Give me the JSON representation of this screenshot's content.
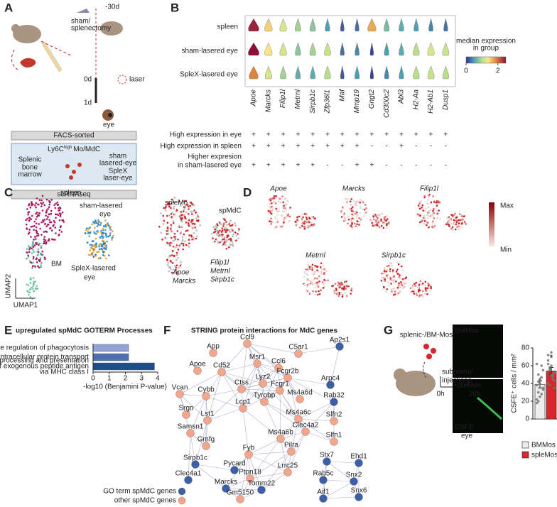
{
  "panel_a": {
    "label": "A",
    "t_start": "-30d",
    "surgery": [
      "sham/",
      "splenectomy"
    ],
    "laser": "laser",
    "day0": "0d",
    "day1": "1d",
    "eye": "eye",
    "sort": "FACS-sorted",
    "population": {
      "base": "Ly6C",
      "sup": "high",
      "rest": "Mo/MdC"
    },
    "source_splenic": "Splenic",
    "source_bm": [
      "bone",
      "marrow"
    ],
    "source_sham": [
      "sham",
      "lasered-eye"
    ],
    "source_splex": [
      "SpleX",
      "laser-eye"
    ],
    "seq": "scRNAseq"
  },
  "panel_b": {
    "label": "B",
    "groups": [
      "spleen",
      "sham-lasered eye",
      "SpleX-lasered eye"
    ],
    "genes": [
      "Apoe",
      "Marcks",
      "Filip1l",
      "Metrnl",
      "Sirpb1c",
      "Zfp36l1",
      "Maf",
      "Mmp19",
      "Gngt2",
      "Cd300c2",
      "Abl3",
      "H2-Aa",
      "H2-Ab1",
      "Dusp1"
    ],
    "gene_colors": [
      "#c0272d",
      "#c0272d",
      "#c0272d",
      "#c0272d",
      "#c0272d",
      "#222222",
      "#222222",
      "#222222",
      "#222222",
      "#222222",
      "#222222",
      "#222222",
      "#222222",
      "#222222"
    ],
    "medians": [
      [
        2.4,
        1.5,
        1.2,
        0.9,
        0.8,
        0.5,
        0.2,
        0.3,
        1.7,
        0.7,
        0.6,
        0.5,
        0.4,
        0.3
      ],
      [
        2.5,
        1.4,
        1.2,
        0.8,
        0.9,
        1.1,
        0.3,
        0.4,
        0.1,
        0.5,
        0.6,
        1.0,
        1.2,
        1.1
      ],
      [
        1.9,
        1.2,
        0.9,
        0.6,
        0.6,
        1.0,
        0.2,
        0.5,
        0.1,
        0.4,
        0.5,
        1.0,
        1.1,
        1.0
      ]
    ],
    "colorbar": {
      "title": [
        "median expression",
        "in group"
      ],
      "lim": [
        0,
        2.5
      ],
      "ticks": [
        0,
        2
      ]
    },
    "criteria": [
      {
        "label": [
          "High expression in eye"
        ],
        "marks": [
          "+",
          "+",
          "+",
          "+",
          "+",
          "+",
          "+",
          "+",
          "+",
          "+",
          "+",
          "+",
          "+",
          "+"
        ]
      },
      {
        "label": [
          "High expression in spleen"
        ],
        "marks": [
          "+",
          "+",
          "+",
          "+",
          "+",
          "+",
          "+",
          "+",
          "-",
          "-",
          "+",
          "-",
          "-",
          "-"
        ]
      },
      {
        "label": [
          "Higher expresion",
          "in sham-lasered eye"
        ],
        "marks": [
          "+",
          "+",
          "+",
          "+",
          "+",
          "-",
          "-",
          "+",
          "+",
          "-",
          "-",
          "-",
          "-",
          "-"
        ]
      }
    ]
  },
  "panel_c": {
    "label": "C",
    "spleen": "spleen",
    "bm": "BM",
    "sham": [
      "sham-lasered",
      "eye"
    ],
    "splex": [
      "SpleX-lasered",
      "eye"
    ],
    "splemo": "spleMo",
    "spmdc": "spMdC",
    "splemo_genes": [
      "Apoe",
      "Marcks"
    ],
    "spmdc_genes": [
      "Filip1l",
      "Metrnl",
      "Sirpb1c"
    ],
    "y_axis": "UMAP2",
    "x_axis": "UMAP1"
  },
  "panel_d": {
    "label": "D",
    "genes": [
      "Apoe",
      "Marcks",
      "Filip1l",
      "Metrnl",
      "Sirpb1c"
    ],
    "scale": [
      "Max",
      "Min"
    ]
  },
  "panel_f": {
    "label": "F",
    "title": "STRING protein interactions for MdC genes",
    "nodes": [
      {
        "label": "App",
        "go": false
      },
      {
        "label": "Ccl9",
        "go": false
      },
      {
        "label": "Ap2s1",
        "go": true
      },
      {
        "label": "C5ar1",
        "go": false
      },
      {
        "label": "Msr1",
        "go": false
      },
      {
        "label": "Ccl6",
        "go": false
      },
      {
        "label": "Apoe",
        "go": false
      },
      {
        "label": "Cd52",
        "go": false
      },
      {
        "label": "Fcgr2b",
        "go": false
      },
      {
        "label": "Arpc4",
        "go": true
      },
      {
        "label": "Vcan",
        "go": false
      },
      {
        "label": "Cybb",
        "go": false
      },
      {
        "label": "Ms4a6d",
        "go": false
      },
      {
        "label": "Rab32",
        "go": true
      },
      {
        "label": "Fcgr1",
        "go": false
      },
      {
        "label": "Srgn",
        "go": false
      },
      {
        "label": "Lst1",
        "go": false
      },
      {
        "label": "Ms4a6c",
        "go": false
      },
      {
        "label": "Slfn2",
        "go": false
      },
      {
        "label": "Samsn1",
        "go": false
      },
      {
        "label": "Clec4a2",
        "go": false
      },
      {
        "label": "Slfn1",
        "go": false
      },
      {
        "label": "Ms4a6b",
        "go": false
      },
      {
        "label": "Pilra",
        "go": false
      },
      {
        "label": "Gmfg",
        "go": false
      },
      {
        "label": "Fyb",
        "go": false
      },
      {
        "label": "Sirpb1c",
        "go": true
      },
      {
        "label": "Pycard",
        "go": true
      },
      {
        "label": "Ptpn18",
        "go": false
      },
      {
        "label": "Lrrc25",
        "go": false
      },
      {
        "label": "Clec4a1",
        "go": true
      },
      {
        "label": "Marcks",
        "go": true
      },
      {
        "label": "Tomm22",
        "go": true
      },
      {
        "label": "Gm5150",
        "go": false
      },
      {
        "label": "Stx7",
        "go": true
      },
      {
        "label": "Ehd1",
        "go": true
      },
      {
        "label": "Rab5c",
        "go": true
      },
      {
        "label": "Snx2",
        "go": true
      },
      {
        "label": "Aif1",
        "go": true
      },
      {
        "label": "Snx6",
        "go": true
      },
      {
        "label": "Lyz2",
        "go": false
      },
      {
        "label": "Ctss",
        "go": false
      },
      {
        "label": "Tyrobp",
        "go": false
      },
      {
        "label": "Lcp1",
        "go": false
      }
    ],
    "legend": [
      "GO term spMdC genes",
      "other spMdC genes"
    ]
  },
  "panel_g": {
    "label": "G",
    "cells": "splenic-/BM-Mos",
    "t0": "0h",
    "t1": "20h",
    "injection": [
      "subretinal",
      "injections"
    ],
    "eye": "eye",
    "image_top": "BMMos",
    "image_bottom": "spleMos",
    "stain": "CSFE"
  },
  "chart_data": [
    {
      "type": "hbar",
      "panel": "E",
      "title": "upregulated spMdC GOTERM Processes",
      "categories": [
        [
          "positive regulation of phagocytosis"
        ],
        [
          "intracellular protein transport"
        ],
        [
          "antigen processing and presentation",
          "of exogenous peptide antigen",
          "via MHC class I"
        ]
      ],
      "values": [
        2.2,
        2.2,
        3.8
      ],
      "colors": [
        "#8fa3d6",
        "#4f6fb5",
        "#1c4f8a"
      ],
      "xlim": [
        0,
        4
      ],
      "xticks": [
        0,
        1,
        2,
        3,
        4
      ],
      "xlabel": "-log10 (Benjamini P-value)"
    },
    {
      "type": "bar",
      "panel": "G",
      "categories": [
        "BMMos",
        "spleMos"
      ],
      "values": [
        39,
        54
      ],
      "errors": [
        4,
        4
      ],
      "colors": [
        "#eeeeee",
        "#d7262c"
      ],
      "points": [
        [
          22,
          30,
          45,
          60,
          35,
          18,
          50,
          40,
          28,
          55,
          38,
          42,
          25,
          47,
          33,
          62,
          20,
          44
        ],
        [
          40,
          58,
          70,
          48,
          35,
          62,
          55,
          75,
          45,
          52,
          66,
          38,
          60,
          50,
          43,
          72,
          57,
          49
        ]
      ],
      "ylim": [
        0,
        80
      ],
      "yticks": [
        0,
        20,
        40,
        60,
        80
      ],
      "ylabel": "CSFE⁺ cells / mm²",
      "annotation": "*"
    }
  ]
}
